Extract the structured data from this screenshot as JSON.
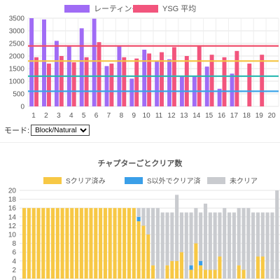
{
  "chart_data": [
    {
      "type": "bar",
      "title": "",
      "categories": [
        "1",
        "2",
        "3",
        "4",
        "5",
        "6",
        "7",
        "8",
        "9",
        "10",
        "11",
        "12",
        "13",
        "14",
        "15",
        "16",
        "17",
        "18",
        "19",
        "20"
      ],
      "series": [
        {
          "name": "レーティング",
          "color": "#a06cf5",
          "values": [
            3500,
            3450,
            2600,
            2380,
            3100,
            3480,
            1600,
            2420,
            1100,
            2250,
            1800,
            1870,
            1200,
            1200,
            1580,
            700,
            1300,
            null,
            null,
            null
          ]
        },
        {
          "name": "YSG 平均",
          "color": "#f2557d",
          "values": [
            1950,
            1700,
            2000,
            1750,
            1950,
            2550,
            1700,
            1950,
            1900,
            2100,
            2150,
            2350,
            2000,
            2400,
            2050,
            1950,
            2200,
            1700,
            2050,
            null
          ]
        }
      ],
      "reference_lines": [
        {
          "value": 2400,
          "color": "#ef4e6b"
        },
        {
          "value": 1800,
          "color": "#f5c542"
        },
        {
          "value": 1200,
          "color": "#27b8b0"
        },
        {
          "value": 600,
          "color": "#3aa3e8"
        }
      ],
      "ylim": [
        0,
        3500
      ],
      "yticks": [
        0,
        500,
        1000,
        1500,
        2000,
        2500,
        3000,
        3500
      ],
      "xlabel": "",
      "ylabel": "",
      "grid": true,
      "legend": "top"
    },
    {
      "type": "bar",
      "stacked": true,
      "title": "チャプターごとクリア数",
      "series": [
        {
          "name": "Sクリア済み",
          "color": "#f7c845",
          "values": [
            16,
            16,
            16,
            16,
            16,
            16,
            16,
            16,
            16,
            16,
            16,
            16,
            16,
            16,
            16,
            16,
            16,
            16,
            16,
            16,
            16,
            16,
            16,
            16,
            13,
            12,
            10,
            3,
            0,
            0,
            3,
            4,
            4,
            6,
            0,
            2,
            8,
            3,
            2,
            2,
            2,
            5,
            0,
            0,
            0,
            3,
            2,
            0,
            0,
            5,
            5,
            0,
            0,
            0
          ]
        },
        {
          "name": "S以外でクリア済",
          "color": "#3a9fe8",
          "values": [
            0,
            0,
            0,
            0,
            0,
            0,
            0,
            0,
            0,
            0,
            0,
            0,
            0,
            0,
            0,
            0,
            0,
            0,
            0,
            0,
            0,
            0,
            0,
            0,
            1,
            0,
            0,
            0,
            0,
            0,
            0,
            0,
            0,
            0,
            0,
            1,
            0,
            1,
            0,
            0,
            0,
            0,
            0,
            0,
            0,
            0,
            0,
            0,
            0,
            0,
            0,
            0,
            0,
            0
          ]
        },
        {
          "name": "未クリア",
          "color": "#c9cbcf",
          "values": [
            0,
            0,
            0,
            0,
            0,
            0,
            0,
            0,
            0,
            0,
            0,
            0,
            0,
            0,
            0,
            0,
            0,
            0,
            0,
            0,
            0,
            0,
            0,
            0,
            2,
            4,
            6,
            13,
            16,
            15,
            12,
            11,
            15,
            9,
            15,
            12,
            8,
            11,
            15,
            13,
            13,
            10,
            16,
            15,
            15,
            13,
            14,
            16,
            15,
            10,
            10,
            15,
            15,
            20
          ]
        }
      ],
      "ylim": [
        0,
        20
      ],
      "yticks": [
        0,
        2,
        4,
        6,
        8,
        10,
        12,
        14,
        16,
        18,
        20
      ],
      "grid": true,
      "legend": "top"
    }
  ],
  "mode": {
    "label": "モード:",
    "selected": "Block/Natural"
  }
}
